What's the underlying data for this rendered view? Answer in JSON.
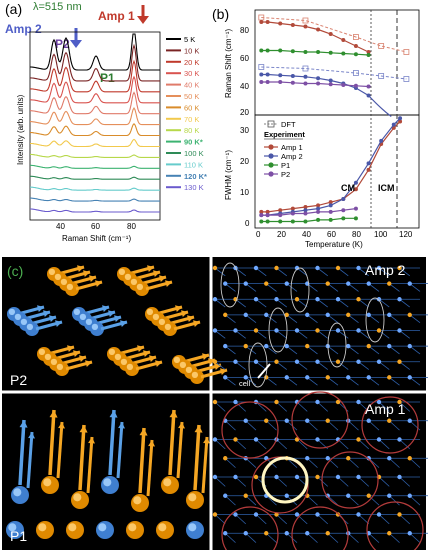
{
  "figure": {
    "panel_a": {
      "label": "(a)",
      "wavelength": "λ=515 nm",
      "amp2_label": "Amp 2",
      "amp1_label": "Amp 1",
      "p2_label": "P2",
      "p1_label": "P1",
      "ylabel": "Intensity (arb. units)",
      "xlabel": "Raman Shift (cm⁻¹)",
      "x_ticks": [
        "40",
        "60",
        "80"
      ]
    },
    "panel_b": {
      "label": "(b)",
      "top_ylabel": "Raman Shift (cm⁻¹)",
      "bottom_ylabel": "FWHM (cm⁻¹)",
      "xlabel": "Temperature (K)",
      "top_y_ticks": [
        "80",
        "60",
        "40",
        "20"
      ],
      "bottom_y_ticks": [
        "30",
        "20",
        "10",
        "0"
      ],
      "x_ticks": [
        "0",
        "20",
        "40",
        "60",
        "80",
        "100",
        "120"
      ],
      "cm_label": "CM",
      "icm_label": "ICM",
      "legend_dft": "DFT",
      "legend_experiment": "Experiment",
      "legend_amp1": "Amp 1",
      "legend_amp2": "Amp 2",
      "legend_p1": "P1",
      "legend_p2": "P2"
    },
    "panel_c": {
      "label": "(c)",
      "p2": "P2",
      "p1": "P1",
      "amp2": "Amp 2",
      "amp1": "Amp 1",
      "cell": "cell"
    }
  },
  "chart_data": [
    {
      "type": "line",
      "name": "Raman spectra",
      "legend": [
        "5 K",
        "10 K",
        "20 K",
        "30 K",
        "40 K",
        "50 K",
        "60 K",
        "70 K",
        "80 K",
        "90 K*",
        "100 K",
        "110 K",
        "120 K*",
        "130 K"
      ],
      "legend_colors": [
        "#000000",
        "#7a2424",
        "#c0392b",
        "#d9534f",
        "#e07b6a",
        "#e58f5b",
        "#d98c2b",
        "#f2c94c",
        "#b7d84a",
        "#3cb371",
        "#2e8b57",
        "#66cccc",
        "#4682b4",
        "#6a5acd"
      ],
      "x_range": [
        30,
        95
      ],
      "peaks_cm": [
        42,
        48,
        63,
        82
      ]
    },
    {
      "type": "line",
      "name": "Raman shift vs temperature",
      "xlim": [
        0,
        130
      ],
      "ylim": [
        20,
        90
      ],
      "x": [
        5,
        10,
        20,
        30,
        40,
        50,
        60,
        70,
        80,
        90
      ],
      "series": [
        {
          "name": "Amp 1",
          "color": "#b24a3a",
          "values": [
            82,
            82,
            81,
            80,
            79,
            77,
            74,
            70,
            66,
            62
          ]
        },
        {
          "name": "Amp 2",
          "color": "#4a57a8",
          "values": [
            47,
            47,
            46.5,
            46,
            45.5,
            44.5,
            43,
            41,
            38,
            33
          ]
        },
        {
          "name": "P1",
          "color": "#2f8f2f",
          "values": [
            63,
            63,
            63,
            62.5,
            62,
            62,
            61.5,
            61,
            60.5,
            60
          ]
        },
        {
          "name": "P2",
          "color": "#7d4fa5",
          "values": [
            42,
            42,
            42,
            41.5,
            41,
            41,
            40.5,
            40,
            39.5,
            39
          ]
        }
      ],
      "dft": [
        {
          "name": "Amp 1",
          "x": [
            5,
            40,
            80,
            100,
            120
          ],
          "values": [
            85,
            83,
            72,
            66,
            62
          ]
        },
        {
          "name": "Amp 2",
          "x": [
            5,
            40,
            80,
            100,
            120
          ],
          "values": [
            52,
            51,
            48,
            46,
            44
          ]
        }
      ]
    },
    {
      "type": "line",
      "name": "FWHM vs temperature",
      "xlim": [
        0,
        130
      ],
      "ylim": [
        0,
        35
      ],
      "x": [
        5,
        10,
        20,
        30,
        40,
        50,
        60,
        70,
        80,
        90,
        100,
        110,
        115
      ],
      "series": [
        {
          "name": "Amp 1",
          "color": "#b24a3a",
          "values": [
            5,
            5,
            5.5,
            6,
            6.5,
            7,
            8,
            9,
            12,
            18,
            26,
            31,
            33
          ]
        },
        {
          "name": "Amp 2",
          "color": "#4a57a8",
          "values": [
            4,
            4,
            4.5,
            5,
            5.5,
            6,
            7,
            9,
            14,
            20,
            27,
            32,
            34
          ]
        },
        {
          "name": "P1",
          "color": "#2f8f2f",
          "values": [
            2,
            2,
            2,
            2,
            2,
            2.5,
            2.5,
            3,
            3,
            null,
            null,
            null,
            null
          ]
        },
        {
          "name": "P2",
          "color": "#7d4fa5",
          "values": [
            4,
            4,
            4,
            4.5,
            4.5,
            5,
            5,
            5.5,
            6,
            null,
            null,
            null,
            null
          ]
        }
      ]
    }
  ]
}
